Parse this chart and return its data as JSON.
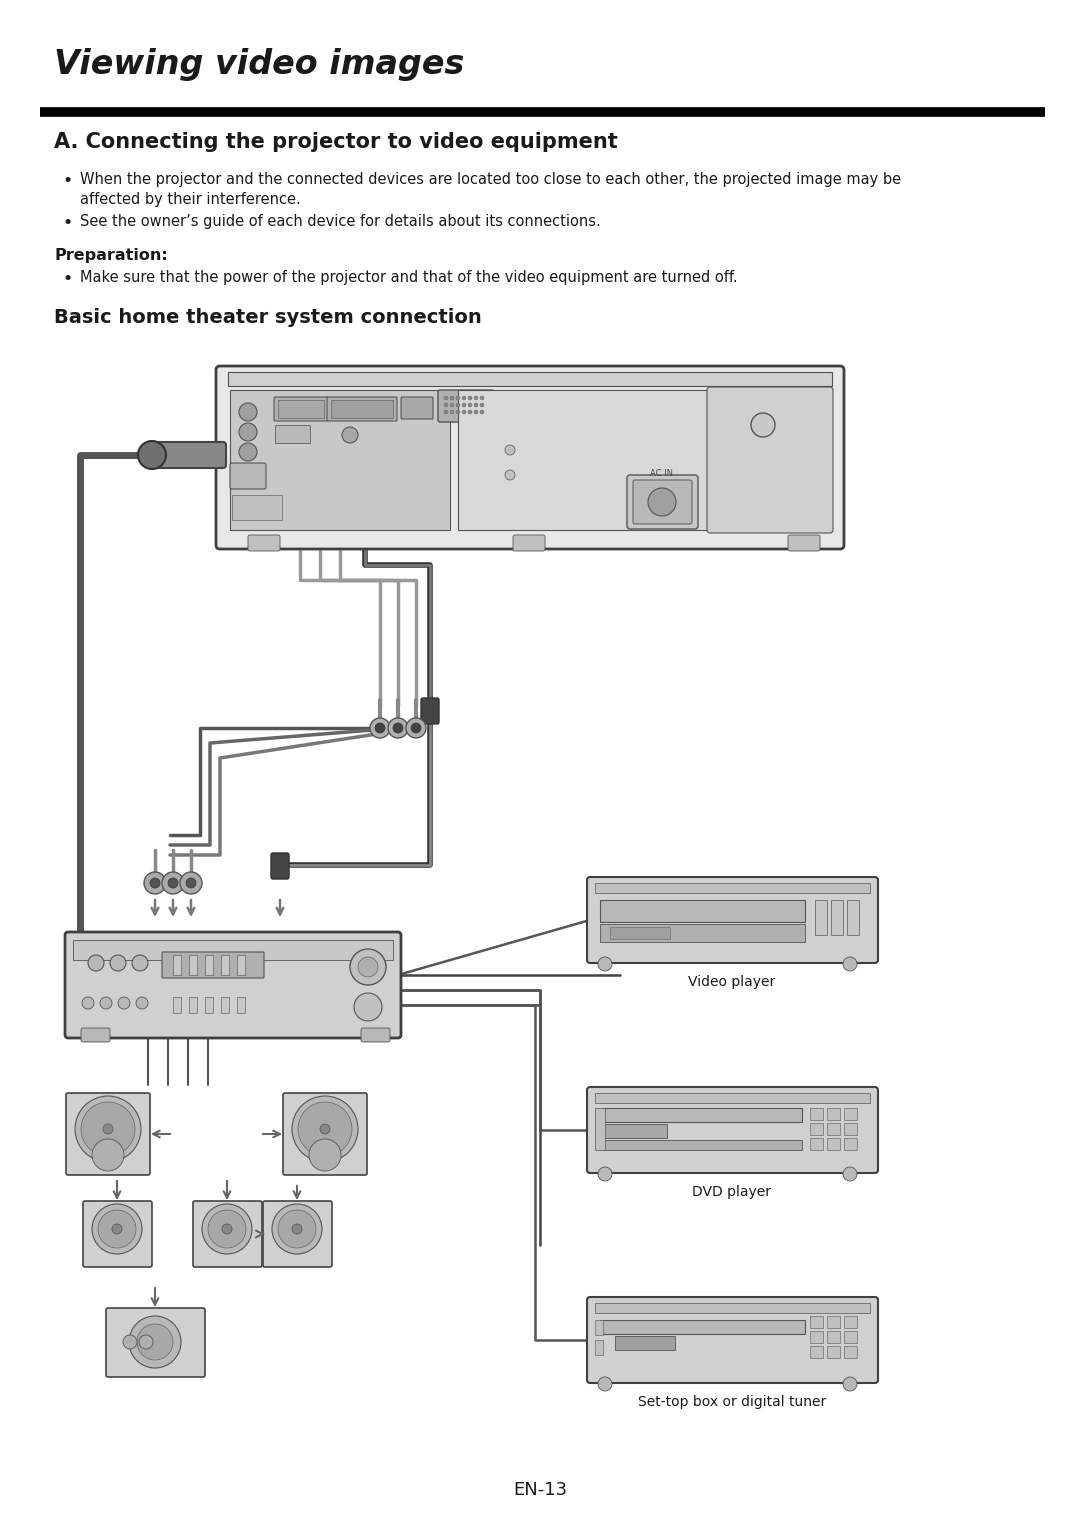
{
  "bg_color": "#ffffff",
  "title": "Viewing video images",
  "title_fontsize": 24,
  "section_a_title": "A. Connecting the projector to video equipment",
  "section_a_fontsize": 15,
  "bullet1_line1": "When the projector and the connected devices are located too close to each other, the projected image may be",
  "bullet1_line2": "affected by their interference.",
  "bullet2": "See the owner’s guide of each device for details about its connections.",
  "prep_label": "Preparation:",
  "prep_bullet": "Make sure that the power of the projector and that of the video equipment are turned off.",
  "section_b_title": "Basic home theater system connection",
  "section_b_fontsize": 14,
  "footer_text": "EN-13",
  "footer_fontsize": 13,
  "body_fontsize": 10.5,
  "text_color": "#1a1a1a",
  "label_video_player": "Video player",
  "label_dvd_player": "DVD player",
  "label_settop": "Set-top box or digital tuner"
}
